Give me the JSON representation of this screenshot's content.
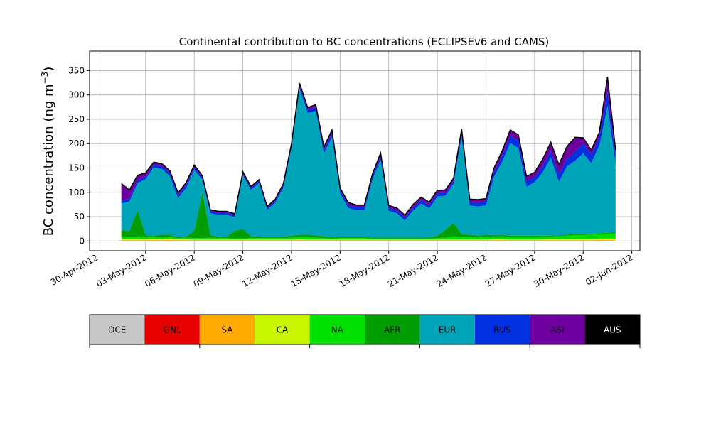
{
  "chart_data": {
    "type": "area",
    "title": "Continental contribution to BC concentrations (ECLIPSEv6 and CAMS)",
    "ylabel": "BC concentration (ng m",
    "ylabel_sup": "−3",
    "ylabel_close": ")",
    "xlabel": "",
    "ylim": [
      -20,
      390
    ],
    "yticks": [
      0,
      50,
      100,
      150,
      200,
      250,
      300,
      350
    ],
    "xlim": [
      "2012-04-29T13:00",
      "2012-06-02T12:00"
    ],
    "xticks": [
      "30-Apr-2012",
      "03-May-2012",
      "06-May-2012",
      "09-May-2012",
      "12-May-2012",
      "15-May-2012",
      "18-May-2012",
      "21-May-2012",
      "24-May-2012",
      "27-May-2012",
      "30-May-2012",
      "02-Jun-2012"
    ],
    "xtick_dates": [
      "2012-04-30",
      "2012-05-03",
      "2012-05-06",
      "2012-05-09",
      "2012-05-12",
      "2012-05-15",
      "2012-05-18",
      "2012-05-21",
      "2012-05-24",
      "2012-05-27",
      "2012-05-30",
      "2012-06-02"
    ],
    "grid": true,
    "legend": "below",
    "x": [
      "2012-05-01T12:00",
      "2012-05-02T00:00",
      "2012-05-02T12:00",
      "2012-05-03T00:00",
      "2012-05-03T12:00",
      "2012-05-04T00:00",
      "2012-05-04T12:00",
      "2012-05-05T00:00",
      "2012-05-05T12:00",
      "2012-05-06T00:00",
      "2012-05-06T12:00",
      "2012-05-07T00:00",
      "2012-05-07T12:00",
      "2012-05-08T00:00",
      "2012-05-08T12:00",
      "2012-05-09T00:00",
      "2012-05-09T12:00",
      "2012-05-10T00:00",
      "2012-05-10T12:00",
      "2012-05-11T00:00",
      "2012-05-11T12:00",
      "2012-05-12T00:00",
      "2012-05-12T12:00",
      "2012-05-13T00:00",
      "2012-05-13T12:00",
      "2012-05-14T00:00",
      "2012-05-14T12:00",
      "2012-05-15T00:00",
      "2012-05-15T12:00",
      "2012-05-16T00:00",
      "2012-05-16T12:00",
      "2012-05-17T00:00",
      "2012-05-17T12:00",
      "2012-05-18T00:00",
      "2012-05-18T12:00",
      "2012-05-19T00:00",
      "2012-05-19T12:00",
      "2012-05-20T00:00",
      "2012-05-20T12:00",
      "2012-05-21T00:00",
      "2012-05-21T12:00",
      "2012-05-22T00:00",
      "2012-05-22T12:00",
      "2012-05-23T00:00",
      "2012-05-23T12:00",
      "2012-05-24T00:00",
      "2012-05-24T12:00",
      "2012-05-25T00:00",
      "2012-05-25T12:00",
      "2012-05-26T00:00",
      "2012-05-26T12:00",
      "2012-05-27T00:00",
      "2012-05-27T12:00",
      "2012-05-28T00:00",
      "2012-05-28T12:00",
      "2012-05-29T00:00",
      "2012-05-29T12:00",
      "2012-05-30T00:00",
      "2012-05-30T12:00",
      "2012-05-31T00:00",
      "2012-05-31T12:00",
      "2012-06-01T00:00"
    ],
    "series": [
      {
        "name": "OCE",
        "color": "#c8c8c8",
        "values": [
          1,
          1,
          1,
          1,
          1,
          1,
          1,
          1,
          1,
          1,
          1,
          1,
          1,
          1,
          1,
          1,
          1,
          1,
          1,
          1,
          1,
          1,
          1,
          1,
          1,
          1,
          1,
          1,
          1,
          1,
          1,
          1,
          1,
          1,
          1,
          1,
          1,
          1,
          1,
          1,
          1,
          1,
          1,
          1,
          1,
          1,
          1,
          1,
          1,
          1,
          1,
          1,
          1,
          1,
          1,
          1,
          1,
          1,
          1,
          1,
          1,
          1
        ]
      },
      {
        "name": "GNL",
        "color": "#e60000",
        "values": [
          0,
          0,
          0,
          0,
          0,
          0,
          0,
          0,
          0,
          0,
          0,
          0,
          0,
          0,
          0,
          0,
          0,
          0,
          0,
          0,
          0,
          0,
          0,
          0,
          0,
          0,
          0,
          0,
          0,
          0,
          0,
          0,
          0,
          0,
          0,
          0,
          0,
          0,
          0,
          0,
          0,
          0,
          0,
          0,
          0,
          0,
          0,
          0,
          0,
          0,
          0,
          0,
          0,
          0,
          0,
          0,
          0,
          0,
          0,
          0,
          0,
          0
        ]
      },
      {
        "name": "SA",
        "color": "#ffaa00",
        "values": [
          1,
          1,
          1,
          1,
          1,
          1,
          1,
          1,
          1,
          1,
          1,
          1,
          1,
          1,
          1,
          1,
          1,
          1,
          1,
          1,
          1,
          1,
          1,
          1,
          1,
          1,
          1,
          1,
          1,
          1,
          1,
          1,
          1,
          1,
          1,
          1,
          1,
          1,
          1,
          1,
          1,
          1,
          1,
          1,
          1,
          1,
          1,
          1,
          1,
          1,
          1,
          1,
          1,
          1,
          1,
          1,
          1,
          1,
          1,
          1,
          1,
          1
        ]
      },
      {
        "name": "CA",
        "color": "#c8f500",
        "values": [
          2,
          2,
          2,
          2,
          3,
          2,
          3,
          2,
          2,
          1,
          1,
          1,
          1,
          1,
          1,
          1,
          1,
          1,
          1,
          1,
          1,
          1,
          2,
          1,
          1,
          1,
          1,
          1,
          1,
          1,
          1,
          1,
          1,
          1,
          1,
          1,
          1,
          1,
          1,
          1,
          1,
          1,
          1,
          1,
          1,
          1,
          2,
          2,
          1,
          1,
          1,
          1,
          2,
          2,
          2,
          2,
          2,
          2,
          2,
          3,
          3,
          3
        ]
      },
      {
        "name": "NA",
        "color": "#00e000",
        "values": [
          4,
          5,
          5,
          3,
          3,
          3,
          3,
          2,
          3,
          3,
          3,
          4,
          3,
          3,
          2,
          2,
          3,
          3,
          3,
          3,
          3,
          4,
          5,
          5,
          4,
          3,
          2,
          3,
          3,
          3,
          3,
          2,
          2,
          2,
          2,
          2,
          2,
          2,
          2,
          3,
          4,
          6,
          5,
          5,
          4,
          5,
          5,
          6,
          5,
          5,
          5,
          5,
          5,
          5,
          6,
          7,
          8,
          8,
          9,
          9,
          10,
          11
        ]
      },
      {
        "name": "AFR",
        "color": "#009e00",
        "values": [
          14,
          12,
          55,
          5,
          3,
          6,
          5,
          2,
          2,
          15,
          95,
          5,
          3,
          3,
          16,
          20,
          4,
          3,
          3,
          3,
          3,
          4,
          4,
          5,
          5,
          4,
          3,
          2,
          2,
          2,
          2,
          2,
          2,
          2,
          2,
          2,
          2,
          2,
          2,
          5,
          16,
          28,
          6,
          5,
          4,
          5,
          3,
          3,
          3,
          3,
          3,
          3,
          2,
          2,
          2,
          2,
          3,
          3,
          2,
          2,
          2,
          3
        ]
      },
      {
        "name": "EUR",
        "color": "#00a4b8",
        "values": [
          55,
          60,
          55,
          115,
          140,
          135,
          120,
          80,
          100,
          125,
          25,
          45,
          45,
          45,
          28,
          110,
          95,
          110,
          55,
          70,
          100,
          180,
          300,
          250,
          255,
          170,
          205,
          90,
          60,
          55,
          55,
          120,
          160,
          55,
          50,
          35,
          55,
          70,
          60,
          80,
          70,
          80,
          200,
          60,
          60,
          60,
          120,
          150,
          190,
          180,
          100,
          110,
          130,
          160,
          110,
          140,
          150,
          165,
          145,
          180,
          260,
          140
        ]
      },
      {
        "name": "RUS",
        "color": "#0030e0",
        "values": [
          6,
          6,
          6,
          5,
          6,
          6,
          6,
          6,
          6,
          5,
          4,
          4,
          4,
          4,
          4,
          4,
          4,
          4,
          4,
          4,
          5,
          5,
          6,
          6,
          7,
          7,
          8,
          6,
          6,
          6,
          6,
          6,
          8,
          6,
          6,
          6,
          7,
          7,
          7,
          7,
          6,
          6,
          8,
          7,
          8,
          8,
          10,
          12,
          15,
          15,
          12,
          10,
          12,
          14,
          15,
          16,
          18,
          20,
          17,
          18,
          30,
          16
        ]
      },
      {
        "name": "ASI",
        "color": "#6e00a0",
        "values": [
          35,
          18,
          10,
          8,
          5,
          5,
          5,
          5,
          5,
          5,
          4,
          3,
          3,
          3,
          3,
          3,
          3,
          3,
          3,
          3,
          4,
          4,
          5,
          5,
          6,
          6,
          7,
          5,
          5,
          5,
          5,
          5,
          6,
          5,
          5,
          5,
          6,
          6,
          6,
          6,
          6,
          6,
          8,
          6,
          6,
          6,
          8,
          10,
          12,
          12,
          10,
          10,
          15,
          18,
          20,
          25,
          30,
          12,
          10,
          10,
          30,
          12
        ]
      },
      {
        "name": "AUS",
        "color": "#000000",
        "values": [
          0,
          0,
          0,
          0,
          0,
          0,
          0,
          0,
          0,
          0,
          0,
          0,
          0,
          0,
          0,
          0,
          0,
          0,
          0,
          0,
          0,
          0,
          0,
          0,
          0,
          0,
          0,
          0,
          0,
          0,
          0,
          0,
          0,
          0,
          0,
          0,
          0,
          0,
          0,
          0,
          0,
          0,
          0,
          0,
          0,
          0,
          0,
          0,
          0,
          0,
          0,
          0,
          0,
          0,
          0,
          0,
          0,
          0,
          0,
          0,
          0,
          0
        ]
      }
    ]
  }
}
